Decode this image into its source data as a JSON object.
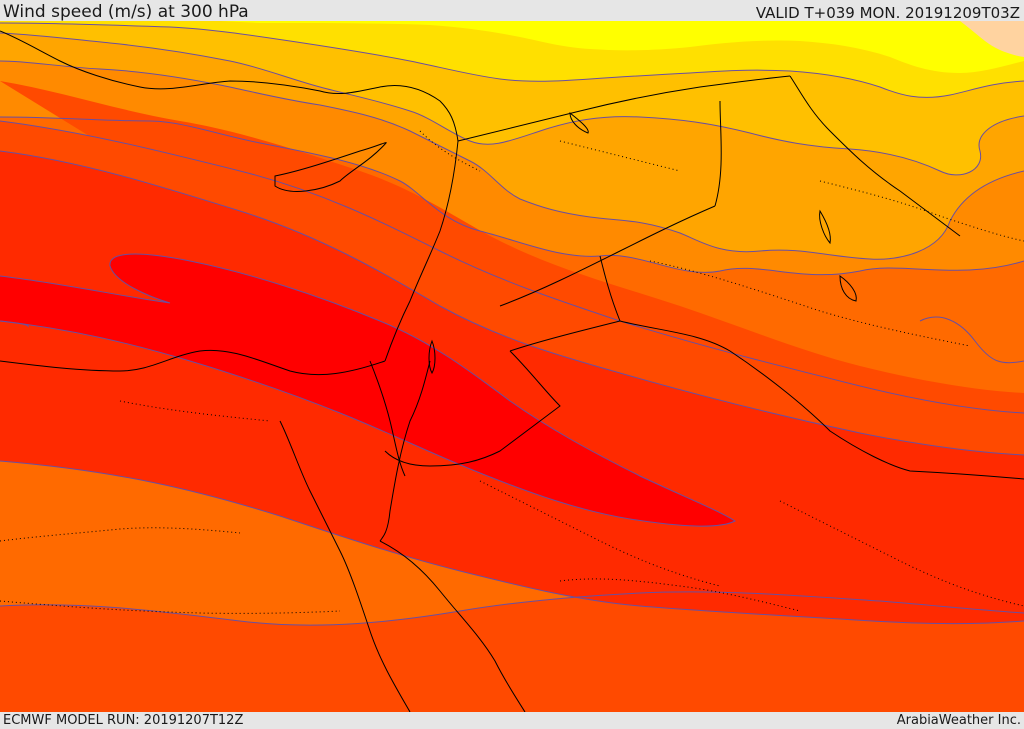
{
  "header": {
    "title": "Wind speed (m/s) at 300 hPa",
    "valid": "VALID T+039 MON. 20191209T03Z"
  },
  "footer": {
    "model_run": "ECMWF MODEL RUN: 20191207T12Z",
    "credit": "ArabiaWeather Inc."
  },
  "map": {
    "field": "wind-speed-shaded-contours",
    "region": "eastern-mediterranean-middle-east",
    "colors": {
      "band_1": "#ffd3a0",
      "band_2": "#ffff00",
      "band_3": "#ffe000",
      "band_4": "#ffc000",
      "band_5": "#ffa500",
      "band_6": "#ff8a00",
      "band_7": "#ff6a00",
      "band_8": "#ff4a00",
      "band_9": "#ff2a00",
      "band_10": "#ff0000",
      "contour_line": "#6a4fa0",
      "coastline": "#000000",
      "border": "#000000"
    }
  }
}
